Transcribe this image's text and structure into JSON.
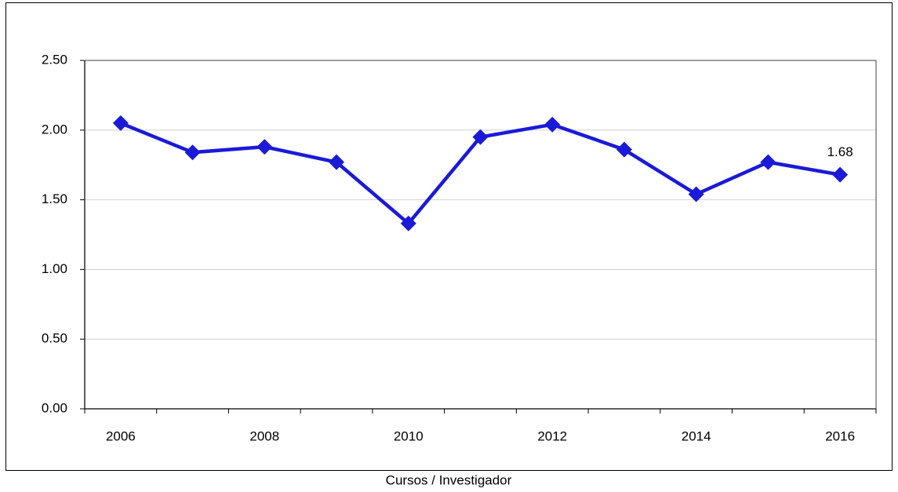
{
  "chart_data": {
    "type": "line",
    "x_label": "Cursos / Investigador",
    "categories": [
      "2006",
      null,
      "2008",
      null,
      "2010",
      null,
      "2012",
      null,
      "2014",
      null,
      "2016"
    ],
    "series": [
      {
        "name": null,
        "color": "#1a1ad8",
        "values": [
          2.05,
          1.84,
          1.88,
          1.77,
          1.33,
          1.95,
          2.04,
          1.86,
          1.54,
          1.77,
          1.68
        ]
      }
    ],
    "data_labels": [
      10
    ],
    "ylim": [
      0,
      2.5
    ],
    "yticks": [
      {
        "value": 0,
        "label": "0.00"
      },
      {
        "value": 0.5,
        "label": "0.50"
      },
      {
        "value": 1,
        "label": "1.00"
      },
      {
        "value": 1.5,
        "label": "1.50"
      },
      {
        "value": 2,
        "label": "2.00"
      },
      {
        "value": 2.5,
        "label": "2.50"
      }
    ],
    "grid": true
  }
}
